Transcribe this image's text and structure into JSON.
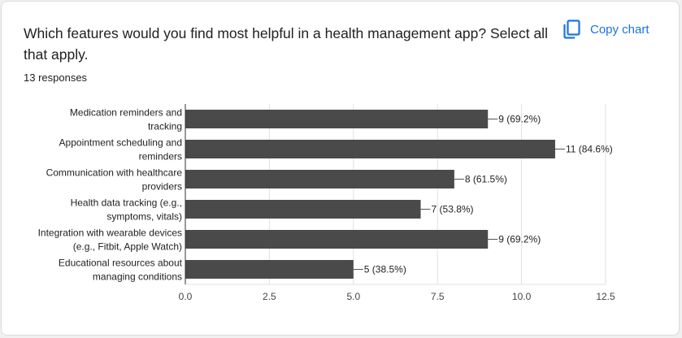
{
  "header": {
    "question": "Which features would you find most helpful in a health management app? Select all that apply.",
    "responses": "13 responses",
    "copy_label": "Copy chart",
    "copy_icon": "copy-icon",
    "accent_color": "#1a73e8"
  },
  "chart_data": {
    "type": "bar",
    "orientation": "horizontal",
    "categories": [
      [
        "Medication reminders and",
        "tracking"
      ],
      [
        "Appointment scheduling and",
        "reminders"
      ],
      [
        "Communication with healthcare",
        "providers"
      ],
      [
        "Health data tracking (e.g.,",
        "symptoms, vitals)"
      ],
      [
        "Integration with wearable devices",
        "(e.g., Fitbit, Apple Watch)"
      ],
      [
        "Educational resources about",
        "managing conditions"
      ]
    ],
    "values": [
      9,
      11,
      8,
      7,
      9,
      5
    ],
    "data_labels": [
      "9 (69.2%)",
      "11 (84.6%)",
      "8 (61.5%)",
      "7 (53.8%)",
      "9 (69.2%)",
      "5 (38.5%)"
    ],
    "xlim": [
      0,
      12.5
    ],
    "xticks": [
      "0.0",
      "2.5",
      "5.0",
      "7.5",
      "10.0",
      "12.5"
    ],
    "grid": true,
    "bar_color": "#4a4a4a"
  }
}
